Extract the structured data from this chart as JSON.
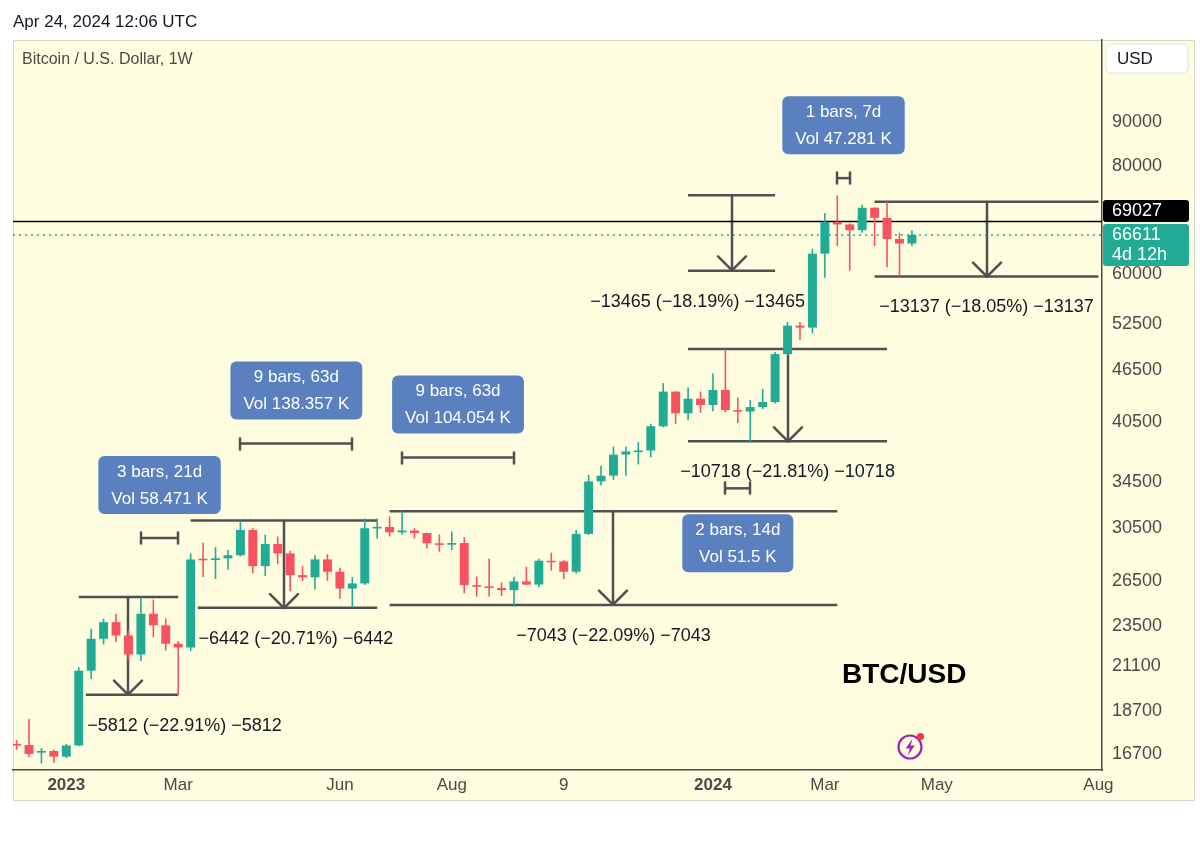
{
  "chart_data": {
    "type": "candlestick",
    "title": "Bitcoin / U.S. Dollar, 1W",
    "ylabel": "USD",
    "log": true,
    "x": [
      "2022-12-05",
      "2022-12-12",
      "2022-12-19",
      "2022-12-26",
      "2023-01-02",
      "2023-01-09",
      "2023-01-16",
      "2023-01-23",
      "2023-01-30",
      "2023-02-06",
      "2023-02-13",
      "2023-02-20",
      "2023-02-27",
      "2023-03-06",
      "2023-03-13",
      "2023-03-20",
      "2023-03-27",
      "2023-04-03",
      "2023-04-10",
      "2023-04-17",
      "2023-04-24",
      "2023-05-01",
      "2023-05-08",
      "2023-05-15",
      "2023-05-22",
      "2023-05-29",
      "2023-06-05",
      "2023-06-12",
      "2023-06-19",
      "2023-06-26",
      "2023-07-03",
      "2023-07-10",
      "2023-07-17",
      "2023-07-24",
      "2023-07-31",
      "2023-08-07",
      "2023-08-14",
      "2023-08-21",
      "2023-08-28",
      "2023-09-04",
      "2023-09-11",
      "2023-09-18",
      "2023-09-25",
      "2023-10-02",
      "2023-10-09",
      "2023-10-16",
      "2023-10-23",
      "2023-10-30",
      "2023-11-06",
      "2023-11-13",
      "2023-11-20",
      "2023-11-27",
      "2023-12-04",
      "2023-12-11",
      "2023-12-18",
      "2023-12-25",
      "2024-01-01",
      "2024-01-08",
      "2024-01-15",
      "2024-01-22",
      "2024-01-29",
      "2024-02-05",
      "2024-02-12",
      "2024-02-19",
      "2024-02-26",
      "2024-03-04",
      "2024-03-11",
      "2024-03-18",
      "2024-03-25",
      "2024-04-01",
      "2024-04-08",
      "2024-04-15",
      "2024-04-22"
    ],
    "ohlc": [
      [
        17150,
        17330,
        16880,
        17100
      ],
      [
        17100,
        18330,
        16560,
        16700
      ],
      [
        16760,
        16960,
        16280,
        16830
      ],
      [
        16830,
        16900,
        16300,
        16580
      ],
      [
        16580,
        17150,
        16520,
        17080
      ],
      [
        17080,
        21050,
        17050,
        20850
      ],
      [
        20850,
        23320,
        20390,
        22700
      ],
      [
        22700,
        23950,
        22360,
        23730
      ],
      [
        23730,
        24270,
        22500,
        22900
      ],
      [
        22900,
        23200,
        21420,
        21770
      ],
      [
        21770,
        25369,
        21390,
        24270
      ],
      [
        24270,
        25200,
        22800,
        23530
      ],
      [
        23530,
        23970,
        22000,
        22400
      ],
      [
        22400,
        22560,
        19557,
        22180
      ],
      [
        22180,
        28500,
        21970,
        28050
      ],
      [
        28100,
        29330,
        26760,
        28000
      ],
      [
        28000,
        28980,
        26620,
        28130
      ],
      [
        28130,
        28760,
        27290,
        28360
      ],
      [
        28360,
        31106,
        28270,
        30340
      ],
      [
        30340,
        30480,
        27030,
        27550
      ],
      [
        27550,
        29960,
        26830,
        29220
      ],
      [
        29220,
        29810,
        27690,
        28500
      ],
      [
        28500,
        28700,
        25770,
        26900
      ],
      [
        26900,
        27570,
        26480,
        26740
      ],
      [
        26740,
        28360,
        25890,
        28050
      ],
      [
        28050,
        28440,
        26500,
        27140
      ],
      [
        27140,
        27440,
        25250,
        25950
      ],
      [
        25950,
        26760,
        24664,
        26310
      ],
      [
        26310,
        31280,
        26200,
        30480
      ],
      [
        30480,
        31280,
        29660,
        30590
      ],
      [
        30590,
        31450,
        29810,
        30150
      ],
      [
        30150,
        31883,
        29970,
        30290
      ],
      [
        30290,
        30480,
        29660,
        30090
      ],
      [
        30090,
        30110,
        28880,
        29280
      ],
      [
        29280,
        29970,
        28630,
        29170
      ],
      [
        29170,
        30220,
        28760,
        29300
      ],
      [
        29300,
        29750,
        25620,
        26190
      ],
      [
        26190,
        26800,
        25400,
        26100
      ],
      [
        26100,
        28120,
        25400,
        25990
      ],
      [
        25990,
        26380,
        25440,
        25840
      ],
      [
        25840,
        26780,
        24840,
        26450
      ],
      [
        26450,
        27500,
        26190,
        26230
      ],
      [
        26230,
        28100,
        26040,
        27950
      ],
      [
        27950,
        28550,
        27220,
        27900
      ],
      [
        27900,
        28000,
        26610,
        27140
      ],
      [
        27140,
        30340,
        27000,
        30020
      ],
      [
        30020,
        35140,
        29940,
        34530
      ],
      [
        34530,
        36000,
        34150,
        35060
      ],
      [
        35060,
        37900,
        34660,
        37090
      ],
      [
        37090,
        37900,
        35060,
        37400
      ],
      [
        37400,
        38360,
        36130,
        37500
      ],
      [
        37500,
        40250,
        36810,
        40000
      ],
      [
        40000,
        44870,
        39900,
        43870
      ],
      [
        43870,
        43900,
        40250,
        41400
      ],
      [
        41400,
        44360,
        40640,
        43050
      ],
      [
        43050,
        43870,
        41460,
        42330
      ],
      [
        42330,
        46040,
        41620,
        44060
      ],
      [
        44060,
        49143,
        41530,
        41760
      ],
      [
        41760,
        43200,
        40360,
        41600
      ],
      [
        41600,
        42890,
        38425,
        42100
      ],
      [
        42100,
        44170,
        41870,
        42670
      ],
      [
        42670,
        48750,
        42500,
        48480
      ],
      [
        48480,
        52830,
        48300,
        52300
      ],
      [
        52300,
        52830,
        50350,
        52030
      ],
      [
        52030,
        64220,
        51230,
        63370
      ],
      [
        63370,
        70600,
        59420,
        68950
      ],
      [
        68950,
        74024,
        64680,
        68500
      ],
      [
        68500,
        68700,
        60559,
        67450
      ],
      [
        67450,
        72180,
        67000,
        71620
      ],
      [
        71620,
        71700,
        64680,
        69720
      ],
      [
        69720,
        72781,
        61130,
        65900
      ],
      [
        65900,
        67000,
        59644,
        65100
      ],
      [
        65100,
        67450,
        64680,
        66611
      ]
    ],
    "colors": [
      "#f7525f",
      "#f7525f",
      "#22ab94",
      "#f7525f",
      "#22ab94",
      "#22ab94",
      "#22ab94",
      "#22ab94",
      "#f7525f",
      "#f7525f",
      "#22ab94",
      "#f7525f",
      "#f7525f",
      "#f7525f",
      "#22ab94",
      "#f7525f",
      "#22ab94",
      "#22ab94",
      "#22ab94",
      "#f7525f",
      "#22ab94",
      "#f7525f",
      "#f7525f",
      "#f7525f",
      "#22ab94",
      "#f7525f",
      "#f7525f",
      "#22ab94",
      "#22ab94",
      "#22ab94",
      "#f7525f",
      "#22ab94",
      "#f7525f",
      "#f7525f",
      "#f7525f",
      "#22ab94",
      "#f7525f",
      "#f7525f",
      "#f7525f",
      "#f7525f",
      "#22ab94",
      "#f7525f",
      "#22ab94",
      "#f7525f",
      "#f7525f",
      "#22ab94",
      "#22ab94",
      "#22ab94",
      "#22ab94",
      "#22ab94",
      "#22ab94",
      "#22ab94",
      "#22ab94",
      "#f7525f",
      "#22ab94",
      "#f7525f",
      "#22ab94",
      "#f7525f",
      "#f7525f",
      "#22ab94",
      "#22ab94",
      "#22ab94",
      "#22ab94",
      "#f7525f",
      "#22ab94",
      "#22ab94",
      "#f7525f",
      "#f7525f",
      "#22ab94",
      "#f7525f",
      "#f7525f",
      "#f7525f",
      "#22ab94"
    ],
    "series": [
      {
        "type": "line",
        "x": [
          "2023-01-09",
          "2023-03-06"
        ],
        "values": [
          25369,
          25369
        ],
        "color": "#505050"
      },
      {
        "type": "line",
        "x": [
          "2023-01-13",
          "2023-03-06"
        ],
        "values": [
          19557,
          19557
        ],
        "color": "#505050"
      },
      {
        "type": "line",
        "x": [
          "2023-03-13",
          "2023-06-26"
        ],
        "values": [
          31106,
          31106
        ],
        "color": "#505050"
      },
      {
        "type": "line",
        "x": [
          "2023-03-17",
          "2023-06-26"
        ],
        "values": [
          24664,
          24664
        ],
        "color": "#505050"
      },
      {
        "type": "line",
        "x": [
          "2023-07-03",
          "2024-03-11"
        ],
        "values": [
          31883,
          31883
        ],
        "color": "#505050"
      },
      {
        "type": "line",
        "x": [
          "2023-07-03",
          "2024-03-11"
        ],
        "values": [
          24840,
          24840
        ],
        "color": "#505050"
      },
      {
        "type": "line",
        "x": [
          "2023-12-18",
          "2024-04-08"
        ],
        "values": [
          49143,
          49143
        ],
        "color": "#505050"
      },
      {
        "type": "line",
        "x": [
          "2023-12-18",
          "2024-04-08"
        ],
        "values": [
          38425,
          38425
        ],
        "color": "#505050"
      },
      {
        "type": "line",
        "x": [
          "2023-12-18",
          "2024-02-05"
        ],
        "values": [
          74024,
          74024
        ],
        "color": "#505050"
      },
      {
        "type": "line",
        "x": [
          "2023-12-18",
          "2024-02-05"
        ],
        "values": [
          60559,
          60559
        ],
        "color": "#505050"
      },
      {
        "type": "line",
        "x": [
          "2024-04-01",
          "2024-08-05"
        ],
        "values": [
          72781,
          72781
        ],
        "color": "#505050"
      },
      {
        "type": "line",
        "x": [
          "2024-04-01",
          "2024-08-05"
        ],
        "values": [
          59644,
          59644
        ],
        "color": "#505050"
      },
      {
        "type": "line",
        "x": [
          "2023-02-13",
          "2023-03-06"
        ],
        "values": [
          29700,
          29700
        ],
        "color": "#505050"
      },
      {
        "type": "line",
        "x": [
          "2023-04-10",
          "2023-06-12"
        ],
        "values": [
          38200,
          38200
        ],
        "color": "#505050"
      },
      {
        "type": "line",
        "x": [
          "2023-07-10",
          "2023-09-11"
        ],
        "values": [
          36800,
          36800
        ],
        "color": "#505050"
      },
      {
        "type": "line",
        "x": [
          "2024-01-08",
          "2024-01-22"
        ],
        "values": [
          33900,
          33900
        ],
        "color": "#505050"
      },
      {
        "type": "line",
        "x": [
          "2024-03-11",
          "2024-03-18"
        ],
        "values": [
          77500,
          77500
        ],
        "color": "#505050"
      }
    ],
    "xlim": [
      "2022-12-03",
      "2024-08-07"
    ],
    "xticks": [
      {
        "value": "2023-01-02",
        "label": "2023"
      },
      {
        "value": "2023-03-06",
        "label": "Mar"
      },
      {
        "value": "2023-06-05",
        "label": "Jun"
      },
      {
        "value": "2023-08-07",
        "label": "Aug"
      },
      {
        "value": "2023-10-09",
        "label": "9"
      },
      {
        "value": "2024-01-01",
        "label": "2024"
      },
      {
        "value": "2024-03-04",
        "label": "Mar"
      },
      {
        "value": "2024-05-06",
        "label": "May"
      },
      {
        "value": "2024-08-05",
        "label": "Aug"
      }
    ],
    "ylim": [
      16000,
      112000
    ],
    "yticks": [
      16700,
      18700,
      21100,
      23500,
      26500,
      30500,
      34500,
      40500,
      46500,
      52500,
      60000,
      80000,
      90000
    ],
    "ref_lines": [
      {
        "axis": "y",
        "value": 69027,
        "label": "69027",
        "color": "#000000"
      },
      {
        "axis": "y",
        "value": 66611,
        "label": "66611",
        "color": "#22ab94",
        "line_style": "dotted"
      }
    ],
    "annotations": [
      "Apr 24, 2024 12:06 UTC",
      "BTC/USD",
      "4d 12h",
      "3 bars, 21d",
      "Vol 58.471 K",
      "9 bars, 63d",
      "Vol 138.357 K",
      "9 bars, 63d",
      "Vol 104.054 K",
      "2 bars, 14d",
      "Vol 51.5 K",
      "1 bars, 7d",
      "Vol 47.281 K",
      {
        "text": "−5812 (−22.91%) −5812",
        "x": "2023-02-06",
        "y": 19557
      },
      {
        "text": "−6442 (−20.71%) −6442",
        "x": "2023-05-04T12:00",
        "y": 24664
      },
      {
        "text": "−7043 (−22.09%) −7043",
        "x": "2023-11-06",
        "y": 24840
      },
      {
        "text": "−10718 (−21.81%) −10718",
        "x": "2024-02-12",
        "y": 38425
      },
      {
        "text": "−13465 (−18.19%) −13465",
        "x": "2024-01-11T12:00",
        "y": 60559
      },
      {
        "text": "−13137 (−18.05%) −13137",
        "x": "2024-06-03",
        "y": 59644
      }
    ]
  }
}
